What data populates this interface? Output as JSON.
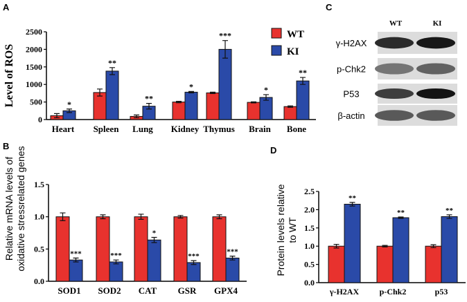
{
  "panels": {
    "a": "A",
    "b": "B",
    "c": "C",
    "d": "D"
  },
  "colors": {
    "wt": "#e8322e",
    "ki": "#2a4aa8"
  },
  "chart_data": [
    {
      "id": "A",
      "type": "bar",
      "ylabel": "Level of ROS",
      "ylim": [
        0,
        2500
      ],
      "yticks": [
        "0",
        "500",
        "1000",
        "1500",
        "2000",
        "2500"
      ],
      "categories": [
        "Heart",
        "Spleen",
        "Lung",
        "Kidney",
        "Thymus",
        "Brain",
        "Bone"
      ],
      "legend": {
        "placement": "top-right",
        "entries": [
          "WT",
          "KI"
        ]
      },
      "series": [
        {
          "name": "WT",
          "values": [
            110,
            770,
            90,
            500,
            760,
            490,
            370
          ],
          "errors": [
            60,
            100,
            40,
            20,
            20,
            15,
            20
          ]
        },
        {
          "name": "KI",
          "values": [
            250,
            1380,
            380,
            780,
            2000,
            630,
            1100
          ],
          "errors": [
            50,
            100,
            80,
            20,
            250,
            80,
            100
          ]
        }
      ],
      "significance": [
        "*",
        "**",
        "**",
        "*",
        "***",
        "*",
        "**"
      ]
    },
    {
      "id": "B",
      "type": "bar",
      "ylabel": "Relative mRNA levels of oxidative stressrelated genes",
      "ylabel_lines": [
        "Relative mRNA levels of",
        "oxidative stressrelated genes"
      ],
      "ylim": [
        0,
        1.5
      ],
      "yticks": [
        "0.0",
        "0.5",
        "1.0",
        "1.5"
      ],
      "categories": [
        "SOD1",
        "SOD2",
        "CAT",
        "GSR",
        "GPX4"
      ],
      "series": [
        {
          "name": "WT",
          "values": [
            1.0,
            1.0,
            1.0,
            1.0,
            1.0
          ],
          "errors": [
            0.06,
            0.03,
            0.04,
            0.02,
            0.03
          ]
        },
        {
          "name": "KI",
          "values": [
            0.33,
            0.3,
            0.64,
            0.29,
            0.36
          ],
          "errors": [
            0.03,
            0.03,
            0.04,
            0.03,
            0.03
          ]
        }
      ],
      "significance": [
        "***",
        "***",
        "*",
        "***",
        "***"
      ]
    },
    {
      "id": "D",
      "type": "bar",
      "ylabel": "Protein levels relative to WT",
      "ylabel_lines": [
        "Protein levels relative",
        "to WT"
      ],
      "ylim": [
        0,
        2.5
      ],
      "yticks": [
        "0.0",
        "0.5",
        "1.0",
        "1.5",
        "2.0",
        "2.5"
      ],
      "categories": [
        "γ-H2AX",
        "p-Chk2",
        "p53"
      ],
      "series": [
        {
          "name": "WT",
          "values": [
            1.0,
            1.0,
            1.0
          ],
          "errors": [
            0.05,
            0.02,
            0.04
          ]
        },
        {
          "name": "KI",
          "values": [
            2.15,
            1.78,
            1.81
          ],
          "errors": [
            0.05,
            0.02,
            0.05
          ]
        }
      ],
      "significance": [
        "**",
        "**",
        "**"
      ]
    }
  ],
  "blot": {
    "columns": [
      "WT",
      "KI"
    ],
    "rows": [
      {
        "label": "γ-H2AX",
        "intensity": [
          0.85,
          0.95
        ]
      },
      {
        "label": "p-Chk2",
        "intensity": [
          0.45,
          0.55
        ]
      },
      {
        "label": "P53",
        "intensity": [
          0.75,
          0.98
        ]
      },
      {
        "label": "β-actin",
        "intensity": [
          0.6,
          0.6
        ]
      }
    ]
  }
}
